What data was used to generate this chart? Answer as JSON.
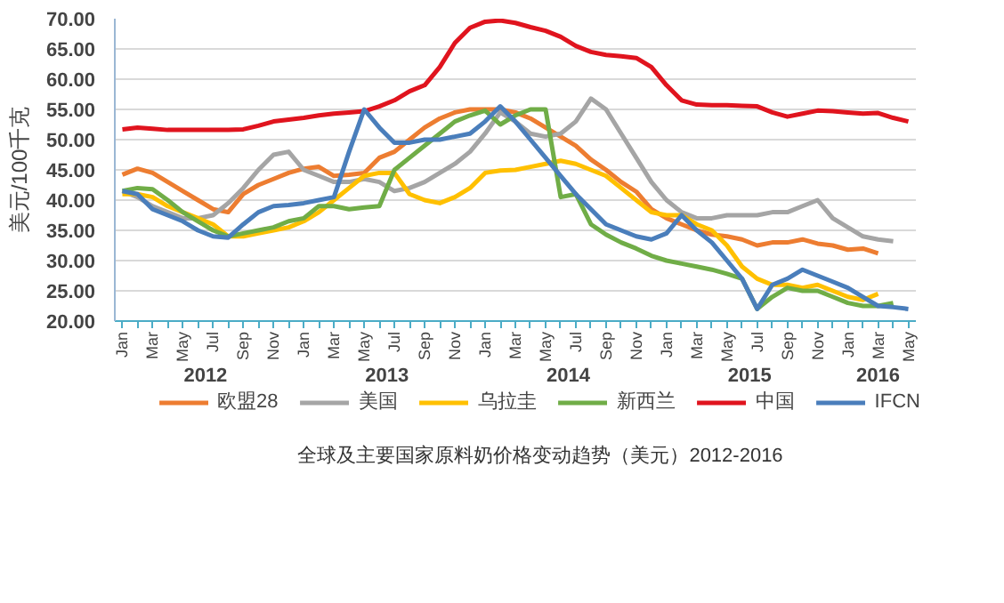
{
  "chart_data": {
    "type": "line",
    "title": "全球及主要国家原料奶价格变动趋势（美元）2012-2016",
    "ylabel": "美元/100千克",
    "categories": [
      "Jan",
      null,
      "Mar",
      null,
      "May",
      null,
      "Jul",
      null,
      "Sep",
      null,
      "Nov",
      null,
      "Jan",
      null,
      "Mar",
      null,
      "May",
      null,
      "Jul",
      null,
      "Sep",
      null,
      "Nov",
      null,
      "Jan",
      null,
      "Mar",
      null,
      "May",
      null,
      "Jul",
      null,
      "Sep",
      null,
      "Nov",
      null,
      "Jan",
      null,
      "Mar",
      null,
      "May",
      null,
      "Jul",
      null,
      "Sep",
      null,
      "Nov",
      null,
      "Jan",
      null,
      "Mar",
      null,
      "May"
    ],
    "annotations": [
      "2012",
      "2013",
      "2014",
      "2015",
      "2016"
    ],
    "ylim": [
      20,
      70
    ],
    "yticks": [
      {
        "value": 20,
        "label": "20.00"
      },
      {
        "value": 25,
        "label": "25.00"
      },
      {
        "value": 30,
        "label": "30.00"
      },
      {
        "value": 35,
        "label": "35.00"
      },
      {
        "value": 40,
        "label": "40.00"
      },
      {
        "value": 45,
        "label": "45.00"
      },
      {
        "value": 50,
        "label": "50.00"
      },
      {
        "value": 55,
        "label": "55.00"
      },
      {
        "value": 60,
        "label": "60.00"
      },
      {
        "value": 65,
        "label": "65.00"
      },
      {
        "value": 70,
        "label": "70.00"
      }
    ],
    "grid": "y",
    "legend": "bottom",
    "marker": "none",
    "line_style": "solid",
    "series": [
      {
        "name": "欧盟28",
        "color": "#ed7d31",
        "values": [
          44.2,
          45.2,
          44.5,
          43,
          41.5,
          40,
          38.5,
          38,
          41,
          42.5,
          43.5,
          44.5,
          45.2,
          45.5,
          44,
          44.2,
          44.5,
          47,
          48,
          50,
          52,
          53.5,
          54.5,
          55,
          55,
          55,
          54.5,
          53.5,
          52,
          50.5,
          49,
          46.7,
          45,
          43,
          41.4,
          38.5,
          37,
          36,
          35,
          34.3,
          34,
          33.5,
          32.5,
          33,
          33,
          33.5,
          32.8,
          32.5,
          31.8,
          32,
          31.2,
          null,
          null
        ]
      },
      {
        "name": "美国",
        "color": "#a5a5a5",
        "values": [
          41.5,
          40.5,
          39,
          38,
          37,
          37,
          37.5,
          39.5,
          42,
          45,
          47.5,
          48,
          45,
          44,
          43,
          43,
          43.5,
          43,
          41.5,
          42,
          43,
          44.5,
          46,
          48,
          51,
          54.5,
          53,
          51,
          50.5,
          51,
          53,
          56.8,
          55,
          51,
          47,
          43,
          40,
          38,
          37,
          37,
          37.5,
          37.5,
          37.5,
          38,
          38,
          39,
          40,
          37,
          35.5,
          34,
          33.5,
          33.2,
          null
        ]
      },
      {
        "name": "乌拉圭",
        "color": "#ffc000",
        "values": [
          41,
          41,
          40.5,
          39,
          38,
          37,
          36,
          34,
          34,
          34.5,
          35,
          35.5,
          36.5,
          38,
          40,
          42,
          44,
          44.5,
          44.5,
          41,
          40,
          39.5,
          40.5,
          42,
          44.5,
          44.9,
          45,
          45.5,
          46,
          46.5,
          46,
          45,
          44,
          42,
          40,
          38,
          37.5,
          37.5,
          36,
          35,
          32.5,
          29,
          27,
          26,
          26,
          25.5,
          26,
          25,
          24,
          23.5,
          24.5,
          null,
          null
        ]
      },
      {
        "name": "新西兰",
        "color": "#70ad47",
        "values": [
          41.5,
          42,
          41.8,
          40,
          38,
          36.5,
          35,
          34,
          34.5,
          35,
          35.5,
          36.5,
          37,
          39,
          39,
          38.5,
          38.8,
          39,
          45,
          47,
          49,
          51,
          53,
          54,
          54.8,
          52.5,
          54,
          55,
          55,
          40.5,
          41,
          36,
          34.3,
          33,
          32,
          30.8,
          30,
          29.5,
          29,
          28.5,
          27.8,
          27,
          22,
          24,
          25.5,
          25,
          25,
          24,
          23,
          22.5,
          22.5,
          23,
          null
        ]
      },
      {
        "name": "中国",
        "color": "#e0141e",
        "values": [
          51.7,
          52,
          51.8,
          51.6,
          51.6,
          51.6,
          51.6,
          51.6,
          51.7,
          52.3,
          53,
          53.3,
          53.6,
          54,
          54.3,
          54.5,
          54.7,
          55.5,
          56.5,
          58,
          59,
          62,
          66,
          68.5,
          69.5,
          69.7,
          69.3,
          68.6,
          68,
          67,
          65.5,
          64.5,
          64,
          63.8,
          63.5,
          62,
          59,
          56.5,
          55.8,
          55.7,
          55.7,
          55.6,
          55.5,
          54.5,
          53.8,
          54.3,
          54.8,
          54.7,
          54.5,
          54.3,
          54.4,
          53.6,
          53
        ]
      },
      {
        "name": "IFCN",
        "color": "#4a7ebb",
        "values": [
          41.5,
          41,
          38.5,
          37.5,
          36.5,
          35,
          34,
          33.8,
          36,
          38,
          39,
          39.2,
          39.5,
          40,
          40.5,
          48,
          55,
          52,
          49.5,
          49.5,
          50,
          50,
          50.5,
          51,
          53,
          55.5,
          53,
          50,
          47,
          44,
          41,
          38.5,
          36,
          35,
          34,
          33.5,
          34.5,
          37.5,
          35,
          33,
          30,
          27,
          22,
          26,
          27,
          28.5,
          27.5,
          26.5,
          25.5,
          24,
          22.5,
          22.3,
          22
        ]
      }
    ]
  }
}
